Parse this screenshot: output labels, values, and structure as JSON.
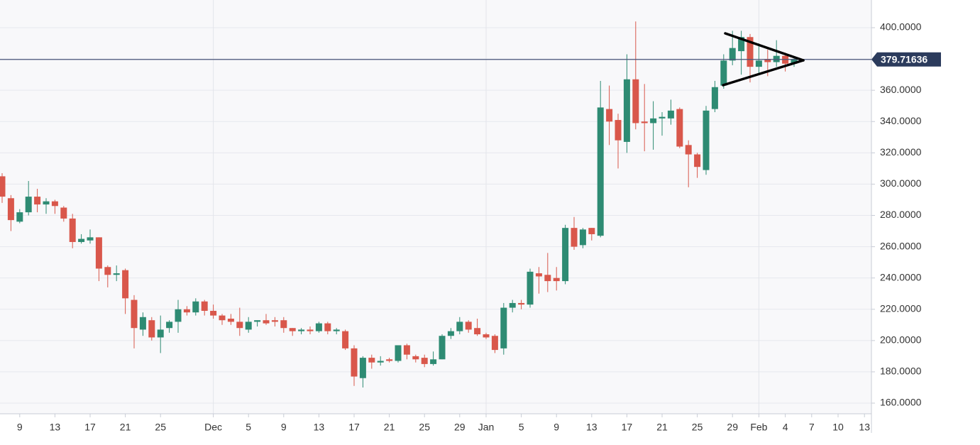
{
  "chart_data": {
    "type": "candlestick",
    "categories": [
      "Nov 7",
      "Nov 8",
      "Nov 9",
      "Nov 10",
      "Nov 11",
      "Nov 12",
      "Nov 13",
      "Nov 14",
      "Nov 15",
      "Nov 16",
      "Nov 17",
      "Nov 18",
      "Nov 19",
      "Nov 20",
      "Nov 21",
      "Nov 22",
      "Nov 23",
      "Nov 24",
      "Nov 25",
      "Nov 26",
      "Nov 27",
      "Nov 28",
      "Nov 29",
      "Nov 30",
      "Dec 1",
      "Dec 2",
      "Dec 3",
      "Dec 4",
      "Dec 5",
      "Dec 6",
      "Dec 7",
      "Dec 8",
      "Dec 9",
      "Dec 10",
      "Dec 11",
      "Dec 12",
      "Dec 13",
      "Dec 14",
      "Dec 15",
      "Dec 16",
      "Dec 17",
      "Dec 18",
      "Dec 19",
      "Dec 20",
      "Dec 21",
      "Dec 22",
      "Dec 23",
      "Dec 24",
      "Dec 25",
      "Dec 26",
      "Dec 27",
      "Dec 28",
      "Dec 29",
      "Dec 30",
      "Dec 31",
      "Jan 1",
      "Jan 2",
      "Jan 3",
      "Jan 4",
      "Jan 5",
      "Jan 6",
      "Jan 7",
      "Jan 8",
      "Jan 9",
      "Jan 10",
      "Jan 11",
      "Jan 12",
      "Jan 13",
      "Jan 14",
      "Jan 15",
      "Jan 16",
      "Jan 17",
      "Jan 18",
      "Jan 19",
      "Jan 20",
      "Jan 21",
      "Jan 22",
      "Jan 23",
      "Jan 24",
      "Jan 25",
      "Jan 26",
      "Jan 27",
      "Jan 28",
      "Jan 29",
      "Jan 30",
      "Jan 31",
      "Feb 1",
      "Feb 2",
      "Feb 3",
      "Feb 4",
      "Feb 5",
      "Feb 6",
      "Feb 7",
      "Feb 8",
      "Feb 9",
      "Feb 10",
      "Feb 11",
      "Feb 12",
      "Feb 13"
    ],
    "open": [
      305,
      291,
      276,
      282,
      292,
      287,
      289,
      285,
      278,
      263,
      264,
      266,
      247,
      242,
      245,
      226,
      207,
      213,
      202,
      208,
      212,
      220,
      218,
      225,
      219,
      216,
      214,
      212,
      207,
      212,
      213,
      213,
      213,
      208,
      206,
      207,
      206,
      211,
      206,
      206,
      195,
      176,
      189,
      186,
      188,
      187,
      197,
      190,
      189,
      185,
      188,
      203,
      206,
      212,
      208,
      204,
      203,
      195,
      221,
      224,
      223,
      243,
      242,
      240,
      238,
      272,
      261,
      272,
      267,
      348,
      341,
      327,
      367,
      340,
      339,
      342,
      342,
      348,
      325,
      319,
      309,
      348,
      363,
      379,
      385,
      394,
      375,
      380,
      378,
      382,
      377,
      null,
      null,
      null,
      null,
      null,
      null,
      null,
      null
    ],
    "high": [
      307,
      293,
      284,
      302,
      297,
      291,
      290,
      286,
      281,
      268,
      271,
      266,
      248,
      248,
      246,
      229,
      218,
      215,
      216,
      213,
      226,
      222,
      227,
      226,
      223,
      217,
      217,
      221,
      215,
      213,
      217,
      215,
      215,
      208,
      208,
      209,
      212,
      212,
      208,
      207,
      197,
      190,
      191,
      190,
      189,
      197,
      198,
      191,
      191,
      193,
      204,
      208,
      215,
      213,
      214,
      205,
      204,
      224,
      226,
      226,
      246,
      247,
      256,
      247,
      274,
      279,
      272,
      272,
      366,
      363,
      345,
      383,
      404,
      364,
      353,
      346,
      354,
      349,
      328,
      320,
      350,
      366,
      383,
      398,
      398,
      396,
      390,
      386,
      392,
      384,
      381,
      null,
      null,
      null,
      null,
      null,
      null,
      null,
      null
    ],
    "low": [
      288,
      270,
      275,
      280,
      282,
      281,
      281,
      276,
      259,
      262,
      262,
      238,
      234,
      238,
      217,
      195,
      203,
      200,
      192,
      205,
      205,
      216,
      216,
      216,
      214,
      210,
      210,
      203,
      205,
      209,
      210,
      209,
      205,
      203,
      204,
      204,
      205,
      204,
      204,
      194,
      171,
      170,
      182,
      184,
      186,
      186,
      188,
      186,
      183,
      184,
      188,
      201,
      204,
      205,
      203,
      201,
      192,
      191,
      218,
      220,
      221,
      230,
      231,
      232,
      236,
      258,
      259,
      264,
      266,
      325,
      310,
      320,
      335,
      321,
      322,
      331,
      338,
      323,
      298,
      304,
      306,
      346,
      361,
      376,
      370,
      365,
      370,
      369,
      375,
      372,
      375,
      null,
      null,
      null,
      null,
      null,
      null,
      null,
      null
    ],
    "close": [
      292,
      277,
      282,
      292,
      287,
      289,
      286,
      278,
      263,
      265,
      266,
      246,
      242,
      243,
      227,
      208,
      215,
      202,
      207,
      212,
      220,
      218,
      225,
      219,
      216,
      213,
      212,
      208,
      212,
      213,
      211,
      212,
      208,
      206,
      207,
      206,
      211,
      206,
      207,
      195,
      177,
      189,
      186,
      187,
      187,
      197,
      191,
      188,
      185,
      188,
      203,
      206,
      212,
      207,
      204,
      202,
      194,
      221,
      224,
      223,
      244,
      241,
      238,
      238,
      272,
      260,
      271,
      268,
      349,
      340,
      328,
      367,
      339,
      339,
      342,
      343,
      347,
      324,
      319,
      311,
      347,
      362,
      379,
      387,
      394,
      375,
      379,
      378,
      382,
      377,
      380,
      null,
      null,
      null,
      null,
      null,
      null,
      null,
      null
    ],
    "up_color": "#2e8b73",
    "down_color": "#d9574b",
    "ylim": [
      153.2,
      417.7
    ],
    "yticks": [
      {
        "value": 160,
        "label": "160.0000"
      },
      {
        "value": 180,
        "label": "180.0000"
      },
      {
        "value": 200,
        "label": "200.0000"
      },
      {
        "value": 220,
        "label": "220.0000"
      },
      {
        "value": 240,
        "label": "240.0000"
      },
      {
        "value": 260,
        "label": "260.0000"
      },
      {
        "value": 280,
        "label": "280.0000"
      },
      {
        "value": 300,
        "label": "300.0000"
      },
      {
        "value": 320,
        "label": "320.0000"
      },
      {
        "value": 340,
        "label": "340.0000"
      },
      {
        "value": 360,
        "label": "360.0000"
      },
      {
        "value": 380,
        "label": "380.0000"
      },
      {
        "value": 400,
        "label": "400.0000"
      }
    ],
    "xticks": [
      {
        "value": "Nov 9",
        "label": "9"
      },
      {
        "value": "Nov 13",
        "label": "13"
      },
      {
        "value": "Nov 17",
        "label": "17"
      },
      {
        "value": "Nov 21",
        "label": "21"
      },
      {
        "value": "Nov 25",
        "label": "25"
      },
      {
        "value": "Dec 1",
        "label": "Dec"
      },
      {
        "value": "Dec 5",
        "label": "5"
      },
      {
        "value": "Dec 9",
        "label": "9"
      },
      {
        "value": "Dec 13",
        "label": "13"
      },
      {
        "value": "Dec 17",
        "label": "17"
      },
      {
        "value": "Dec 21",
        "label": "21"
      },
      {
        "value": "Dec 25",
        "label": "25"
      },
      {
        "value": "Dec 29",
        "label": "29"
      },
      {
        "value": "Jan 1",
        "label": "Jan"
      },
      {
        "value": "Jan 5",
        "label": "5"
      },
      {
        "value": "Jan 9",
        "label": "9"
      },
      {
        "value": "Jan 13",
        "label": "13"
      },
      {
        "value": "Jan 17",
        "label": "17"
      },
      {
        "value": "Jan 21",
        "label": "21"
      },
      {
        "value": "Jan 25",
        "label": "25"
      },
      {
        "value": "Jan 29",
        "label": "29"
      },
      {
        "value": "Feb 1",
        "label": "Feb"
      },
      {
        "value": "Feb 4",
        "label": "4"
      },
      {
        "value": "Feb 7",
        "label": "7"
      },
      {
        "value": "Feb 10",
        "label": "10"
      },
      {
        "value": "Feb 13",
        "label": "13"
      }
    ],
    "month_gridlines": [
      "Dec 1",
      "Jan 1",
      "Feb 1"
    ],
    "last_price": 379.71636,
    "grid": true
  }
}
